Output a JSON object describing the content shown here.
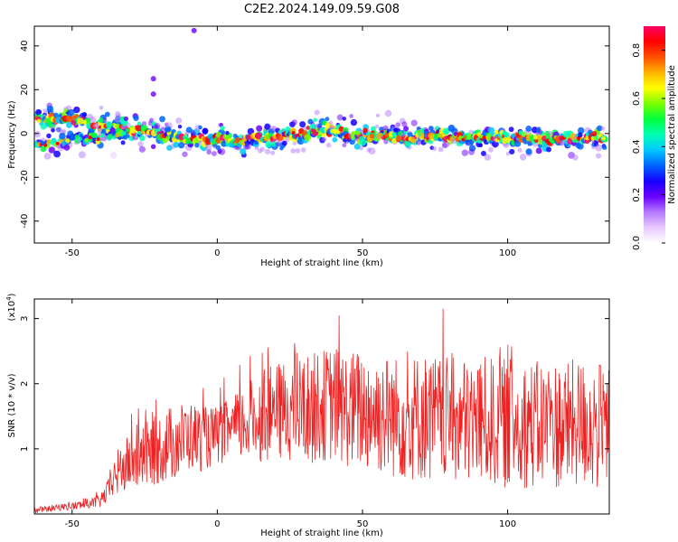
{
  "title": "C2E2.2024.149.09.59.G08",
  "chart_data": [
    {
      "type": "heatmap",
      "title": "C2E2.2024.149.09.59.G08",
      "xlabel": "Height of straight line (km)",
      "ylabel": "Frequency (Hz)",
      "xlim": [
        -63,
        135
      ],
      "ylim": [
        -50,
        49
      ],
      "x_ticks": [
        -50,
        0,
        50,
        100
      ],
      "y_ticks": [
        -40,
        -20,
        0,
        20,
        40
      ],
      "grid": false,
      "colorbar": {
        "label": "Normalized spectral amplitude",
        "range": [
          0.0,
          0.9
        ],
        "ticks": [
          0.0,
          0.2,
          0.4,
          0.6,
          0.8
        ],
        "colors": [
          "#ffffff",
          "#e6c8ff",
          "#b478ff",
          "#6a00ff",
          "#1400ff",
          "#0064ff",
          "#00c8ff",
          "#00ffb4",
          "#00ff3c",
          "#78ff00",
          "#ffff00",
          "#ffb400",
          "#ff5000",
          "#ff0000",
          "#ff0064"
        ]
      },
      "ridge": {
        "x": [
          -62,
          -55,
          -50,
          -45,
          -40,
          -35,
          -30,
          -25,
          -20,
          -15,
          -10,
          -5,
          0,
          5,
          10,
          15,
          20,
          25,
          30,
          35,
          40,
          45,
          50,
          55,
          60,
          65,
          70,
          75,
          80,
          85,
          90,
          95,
          100,
          105,
          110,
          115,
          120,
          125,
          130,
          134
        ],
        "freq": [
          6,
          6,
          7,
          5,
          3,
          4,
          2,
          1,
          -1,
          -2,
          -2,
          -3,
          -3,
          -3,
          -3,
          -2,
          -2,
          -1,
          0,
          1,
          1,
          0,
          -1,
          -1,
          -2,
          -2,
          -1,
          -1,
          -1,
          -2,
          -2,
          -2,
          -2,
          -2,
          -2,
          -2,
          -2,
          -2,
          -2,
          -2
        ],
        "secondary_band": {
          "x": [
            -62,
            -55,
            -50,
            -45,
            -40,
            -35,
            -30
          ],
          "freq": [
            -5,
            -4,
            -3,
            -2,
            -1,
            -1,
            0
          ]
        },
        "outliers": [
          {
            "x": -22,
            "freq": 25
          },
          {
            "x": -22,
            "freq": 18
          },
          {
            "x": -8,
            "freq": 47
          }
        ]
      }
    },
    {
      "type": "line",
      "xlabel": "Height of straight line (km)",
      "ylabel": "SNR (10 * v/v)",
      "y_multiplier": "(x10^4)",
      "xlim": [
        -63,
        135
      ],
      "ylim": [
        0,
        3.3
      ],
      "x_ticks": [
        -50,
        0,
        50,
        100
      ],
      "y_ticks": [
        1,
        2,
        3
      ],
      "grid": false,
      "line_color": "#ee2222",
      "envelope": {
        "x": [
          -63,
          -55,
          -50,
          -45,
          -40,
          -37,
          -35,
          -30,
          -25,
          -20,
          -15,
          -10,
          -5,
          0,
          5,
          10,
          15,
          20,
          25,
          30,
          35,
          40,
          45,
          50,
          55,
          60,
          65,
          70,
          75,
          80,
          85,
          90,
          95,
          100,
          105,
          110,
          115,
          120,
          125,
          130,
          135
        ],
        "center": [
          0.05,
          0.1,
          0.12,
          0.15,
          0.2,
          0.4,
          0.6,
          0.8,
          0.9,
          1.0,
          1.1,
          1.2,
          1.15,
          1.2,
          1.3,
          1.4,
          1.5,
          1.55,
          1.6,
          1.6,
          1.65,
          1.7,
          1.6,
          1.6,
          1.55,
          1.5,
          1.45,
          1.5,
          1.45,
          1.45,
          1.4,
          1.45,
          1.4,
          1.4,
          1.4,
          1.35,
          1.4,
          1.35,
          1.4,
          1.35,
          1.3
        ],
        "amplitude": [
          0.05,
          0.05,
          0.06,
          0.08,
          0.1,
          0.2,
          0.35,
          0.45,
          0.5,
          0.55,
          0.6,
          0.55,
          0.5,
          0.45,
          0.5,
          0.6,
          0.7,
          0.75,
          0.8,
          0.85,
          0.85,
          0.9,
          0.9,
          0.95,
          0.95,
          0.95,
          0.95,
          1.0,
          1.0,
          0.95,
          1.0,
          1.0,
          1.0,
          1.0,
          1.0,
          1.0,
          1.0,
          1.0,
          1.0,
          1.0,
          1.0
        ]
      }
    }
  ]
}
